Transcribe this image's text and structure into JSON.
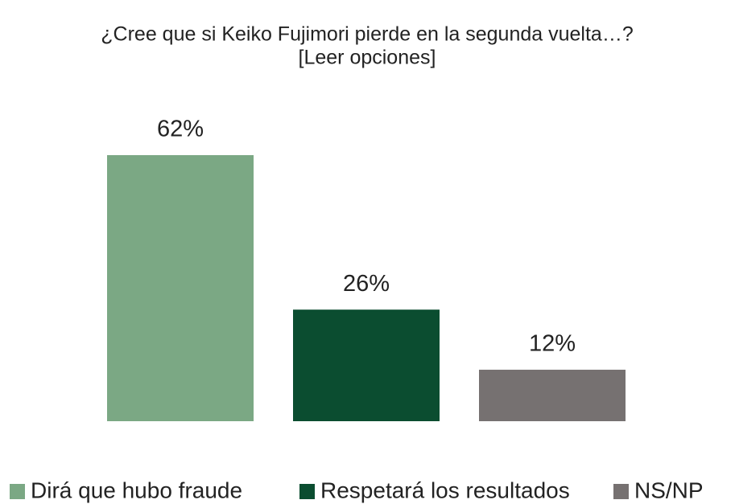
{
  "chart_data": {
    "type": "bar",
    "title": "¿Cree que si Keiko Fujimori pierde en la segunda vuelta…?",
    "subtitle": "[Leer opciones]",
    "series": [
      {
        "name": "Dirá que hubo fraude",
        "color": "#7ba884",
        "values": [
          62
        ],
        "value_labels": [
          "62%"
        ]
      },
      {
        "name": "Respetará los resultados",
        "color": "#0b4d30",
        "values": [
          26
        ],
        "value_labels": [
          "26%"
        ]
      },
      {
        "name": "NS/NP",
        "color": "#767171",
        "values": [
          12
        ],
        "value_labels": [
          "12%"
        ]
      }
    ],
    "legend": "bottom"
  }
}
